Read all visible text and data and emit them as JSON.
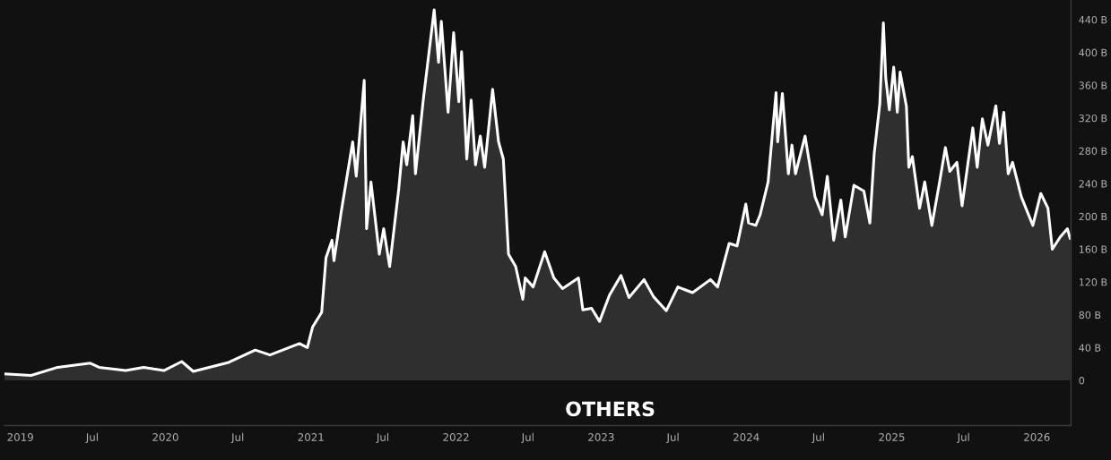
{
  "chart_data": {
    "type": "area",
    "title": "OTHERS",
    "xlim": [
      "2018-11-22",
      "2026-03-28"
    ],
    "xticks": [
      {
        "value": "2019-01-01",
        "label": "2019"
      },
      {
        "value": "2019-07-01",
        "label": "Jul"
      },
      {
        "value": "2020-01-01",
        "label": "2020"
      },
      {
        "value": "2020-07-01",
        "label": "Jul"
      },
      {
        "value": "2021-01-01",
        "label": "2021"
      },
      {
        "value": "2021-07-01",
        "label": "Jul"
      },
      {
        "value": "2022-01-01",
        "label": "2022"
      },
      {
        "value": "2022-07-01",
        "label": "Jul"
      },
      {
        "value": "2023-01-01",
        "label": "2023"
      },
      {
        "value": "2023-07-01",
        "label": "Jul"
      },
      {
        "value": "2024-01-01",
        "label": "2024"
      },
      {
        "value": "2024-07-01",
        "label": "Jul"
      },
      {
        "value": "2025-01-01",
        "label": "2025"
      },
      {
        "value": "2025-07-01",
        "label": "Jul"
      },
      {
        "value": "2026-01-01",
        "label": "2026"
      }
    ],
    "ylim": [
      -55,
      464
    ],
    "yticks": [
      0,
      {
        "value": 40,
        "label": "40 B"
      },
      {
        "value": 80,
        "label": "80 B"
      },
      {
        "value": 120,
        "label": "120 B"
      },
      {
        "value": 160,
        "label": "160 B"
      },
      {
        "value": 200,
        "label": "200 B"
      },
      {
        "value": 240,
        "label": "240 B"
      },
      {
        "value": 280,
        "label": "280 B"
      },
      {
        "value": 320,
        "label": "320 B"
      },
      {
        "value": 360,
        "label": "360 B"
      },
      {
        "value": 400,
        "label": "400 B"
      },
      {
        "value": 440,
        "label": "440 B"
      }
    ],
    "grid": false,
    "legend": false,
    "x": [
      "2018-11-22",
      "2019-01-28",
      "2019-04-05",
      "2019-06-26",
      "2019-07-18",
      "2019-09-23",
      "2019-11-07",
      "2019-12-28",
      "2020-02-11",
      "2020-03-11",
      "2020-06-08",
      "2020-08-14",
      "2020-09-20",
      "2020-12-03",
      "2020-12-23",
      "2021-01-05",
      "2021-01-28",
      "2021-02-08",
      "2021-02-23",
      "2021-02-28",
      "2021-03-18",
      "2021-04-16",
      "2021-04-25",
      "2021-05-15",
      "2021-05-21",
      "2021-06-01",
      "2021-06-22",
      "2021-07-03",
      "2021-07-18",
      "2021-08-10",
      "2021-08-21",
      "2021-08-30",
      "2021-09-14",
      "2021-09-21",
      "2021-10-11",
      "2021-11-07",
      "2021-11-18",
      "2021-11-25",
      "2021-12-12",
      "2021-12-26",
      "2022-01-08",
      "2022-01-15",
      "2022-01-28",
      "2022-02-08",
      "2022-02-19",
      "2022-03-03",
      "2022-03-14",
      "2022-04-03",
      "2022-04-18",
      "2022-04-30",
      "2022-05-13",
      "2022-05-31",
      "2022-06-18",
      "2022-06-24",
      "2022-07-14",
      "2022-08-12",
      "2022-09-04",
      "2022-09-26",
      "2022-11-05",
      "2022-11-16",
      "2022-12-08",
      "2022-12-28",
      "2023-01-22",
      "2023-02-20",
      "2023-03-12",
      "2023-04-19",
      "2023-05-13",
      "2023-06-14",
      "2023-07-13",
      "2023-08-19",
      "2023-10-03",
      "2023-10-21",
      "2023-11-19",
      "2023-12-09",
      "2023-12-31",
      "2024-01-07",
      "2024-01-25",
      "2024-02-05",
      "2024-02-25",
      "2024-03-16",
      "2024-03-20",
      "2024-04-01",
      "2024-04-16",
      "2024-04-25",
      "2024-05-04",
      "2024-05-28",
      "2024-06-22",
      "2024-07-10",
      "2024-07-23",
      "2024-08-08",
      "2024-08-26",
      "2024-09-06",
      "2024-09-28",
      "2024-10-23",
      "2024-11-07",
      "2024-11-18",
      "2024-12-02",
      "2024-12-11",
      "2024-12-17",
      "2024-12-26",
      "2025-01-06",
      "2025-01-15",
      "2025-01-22",
      "2025-02-07",
      "2025-02-13",
      "2025-02-22",
      "2025-03-12",
      "2025-03-25",
      "2025-04-12",
      "2025-04-30",
      "2025-05-16",
      "2025-05-27",
      "2025-06-14",
      "2025-06-27",
      "2025-07-24",
      "2025-08-04",
      "2025-08-17",
      "2025-08-31",
      "2025-09-20",
      "2025-09-29",
      "2025-10-10",
      "2025-10-21",
      "2025-11-01",
      "2025-11-23",
      "2025-12-22",
      "2026-01-11",
      "2026-01-29",
      "2026-02-09",
      "2026-03-01",
      "2026-03-19",
      "2026-03-26"
    ],
    "series": [
      {
        "color": "#ffffff",
        "values": [
          8,
          6,
          16,
          21,
          16,
          12,
          16,
          12,
          23,
          11,
          22,
          37,
          31,
          45,
          40,
          65,
          83,
          150,
          171,
          146,
          205,
          291,
          249,
          366,
          185,
          242,
          154,
          185,
          139,
          234,
          291,
          263,
          323,
          252,
          344,
          452,
          388,
          438,
          327,
          424,
          340,
          401,
          270,
          342,
          263,
          298,
          260,
          355,
          291,
          270,
          154,
          139,
          99,
          125,
          114,
          157,
          125,
          112,
          125,
          86,
          88,
          72,
          104,
          128,
          101,
          123,
          102,
          85,
          114,
          107,
          123,
          114,
          167,
          164,
          215,
          192,
          189,
          202,
          242,
          351,
          291,
          350,
          252,
          287,
          252,
          298,
          224,
          202,
          249,
          171,
          220,
          175,
          238,
          231,
          192,
          277,
          337,
          436,
          369,
          330,
          382,
          327,
          376,
          334,
          260,
          273,
          210,
          242,
          189,
          238,
          284,
          255,
          266,
          213,
          308,
          260,
          319,
          287,
          335,
          289,
          327,
          252,
          266,
          224,
          189,
          228,
          210,
          160,
          175,
          185,
          173
        ]
      }
    ]
  }
}
